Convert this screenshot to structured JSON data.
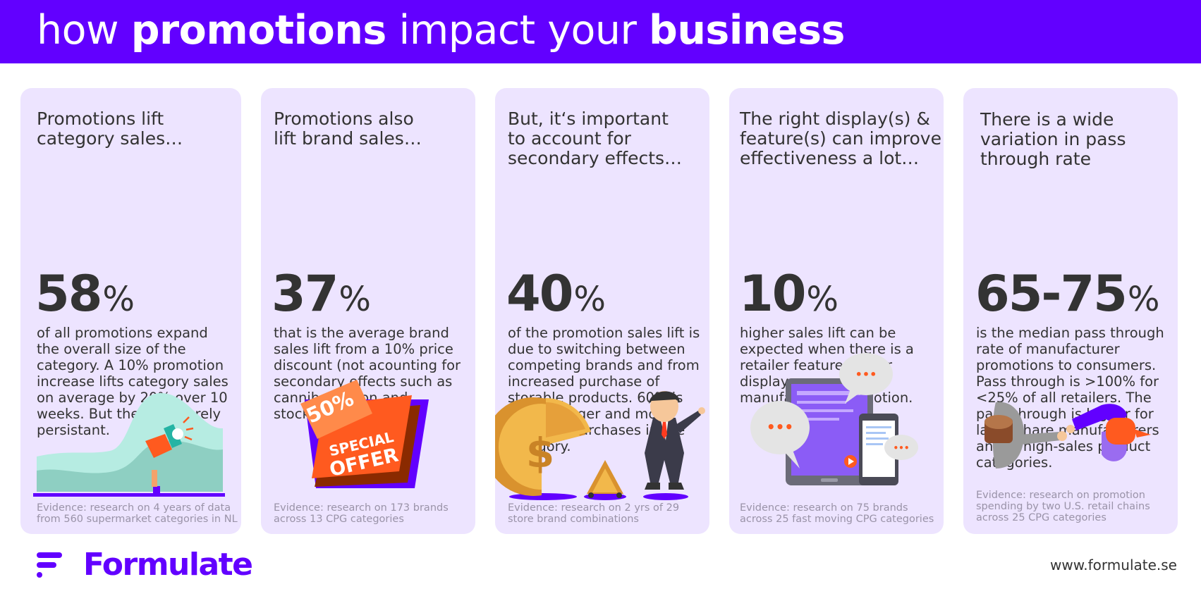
{
  "header": {
    "title_parts": [
      {
        "text": "how ",
        "bold": false
      },
      {
        "text": "promotions",
        "bold": true
      },
      {
        "text": " impact your ",
        "bold": false
      },
      {
        "text": "business",
        "bold": true
      }
    ]
  },
  "cards": [
    {
      "heading": "Promotions lift\ncategory sales…",
      "stat": "58",
      "unit": "%",
      "body": "of all promotions expand the overall size of the category. A 10% promotion increase lifts category sales on average by 20% over 10 weeks. But the lift is rarely persistant.",
      "evidence": "Evidence: research on 4 years of data\nfrom 560 supermarket categories in NL"
    },
    {
      "heading": "Promotions also\nlift brand sales…",
      "stat": "37",
      "unit": "%",
      "body": "that is the average brand sales lift from a 10% price discount (not acounting for secondary effects such as cannibalization and stockpiling).",
      "evidence": "Evidence: research on 173 brands\nacross 13 CPG categories",
      "badge_top": "50%",
      "badge_line1": "SPECIAL",
      "badge_line2": "OFFER"
    },
    {
      "heading": "But, it‘s important\nto account for\nsecondary effects…",
      "stat": "40",
      "unit": "%",
      "body": "of the promotion sales lift is due to switching between competing brands and from increased purchase of storable products. 60% is due to bigger and more frequent purchases in the category.",
      "evidence": "Evidence: research on 2 yrs of 29\nstore brand combinations",
      "coin_symbol": "$"
    },
    {
      "heading": "The right display(s)  &\nfeature(s) can improve\neffectiveness a lot…",
      "stat": "10",
      "unit": "%",
      "body": "higher sales lift can be expected when there is a retailer feature and/or display supporting a manufacturer promotion.",
      "evidence": "Evidence: research on 75 brands\nacross 25 fast moving CPG categories",
      "bubble_text": "•••"
    },
    {
      "heading": "There is a wide\nvariation in pass\nthrough rate",
      "stat": "65-75",
      "unit": "%",
      "body": "is the median pass through rate of manufacturer promotions to consumers. Pass through is >100% for <25% of all retailers. The pass-through is higher for large-share manufacturers and in high-sales product categories.",
      "evidence": "Evidence: research on promotion\nspending by two U.S. retail chains\nacross 25 CPG categories"
    }
  ],
  "footer": {
    "brand": "Formulate",
    "website": "www.formulate.se"
  },
  "colors": {
    "brand_purple": "#6200ff",
    "card_bg": "#ede4ff",
    "accent_orange": "#ff5a1f",
    "teal": "#9fdcd0",
    "gold": "#f2b84b"
  }
}
